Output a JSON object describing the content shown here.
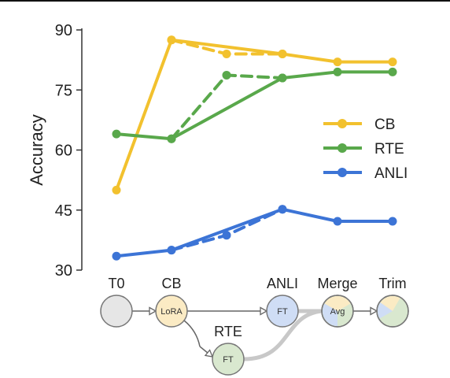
{
  "chart_data": {
    "type": "line",
    "title": "",
    "xlabel": "",
    "ylabel": "Accuracy",
    "ylim": [
      30,
      90
    ],
    "yticks": [
      30,
      45,
      60,
      75,
      90
    ],
    "x_positions": [
      1,
      2,
      3,
      4,
      5,
      6
    ],
    "legend": {
      "position": "right"
    },
    "grid": false,
    "series": [
      {
        "name": "CB",
        "color": "#F2C12E",
        "style": "solid",
        "x": [
          1,
          2,
          4,
          5,
          6
        ],
        "values": [
          50,
          87.5,
          84,
          82,
          82
        ]
      },
      {
        "name": "CB",
        "color": "#F2C12E",
        "style": "dashed",
        "show_in_legend": false,
        "x": [
          2,
          3,
          4
        ],
        "values": [
          87.5,
          84,
          84
        ]
      },
      {
        "name": "RTE",
        "color": "#59A84B",
        "style": "solid",
        "x": [
          1,
          2,
          4,
          5,
          6
        ],
        "values": [
          64,
          62.8,
          78,
          79.5,
          79.5
        ]
      },
      {
        "name": "RTE",
        "color": "#59A84B",
        "style": "dashed",
        "show_in_legend": false,
        "x": [
          2,
          3,
          4
        ],
        "values": [
          62.8,
          78.7,
          78
        ]
      },
      {
        "name": "ANLI",
        "color": "#3C74D6",
        "style": "solid",
        "x": [
          1,
          2,
          4,
          5,
          6
        ],
        "values": [
          33.5,
          35,
          45.2,
          42.2,
          42.2
        ]
      },
      {
        "name": "ANLI",
        "color": "#3C74D6",
        "style": "dashed",
        "show_in_legend": false,
        "x": [
          2,
          3,
          4
        ],
        "values": [
          35,
          38.7,
          45.2
        ]
      }
    ]
  },
  "pipeline": {
    "nodes": [
      {
        "id": "t0",
        "top_label": "T0",
        "inner_label": "",
        "fill": "#E6E6E6"
      },
      {
        "id": "cb",
        "top_label": "CB",
        "inner_label": "LoRA",
        "fill": "#FBEBC4"
      },
      {
        "id": "rte",
        "top_label": "RTE",
        "inner_label": "FT",
        "fill": "#D9E8CF"
      },
      {
        "id": "anli",
        "top_label": "ANLI",
        "inner_label": "FT",
        "fill": "#CFDDF5"
      },
      {
        "id": "merge",
        "top_label": "Merge",
        "inner_label": "Avg",
        "fill": "#D9E8CF"
      },
      {
        "id": "trim",
        "top_label": "Trim",
        "inner_label": "",
        "fill": "#D9E8CF"
      }
    ]
  }
}
